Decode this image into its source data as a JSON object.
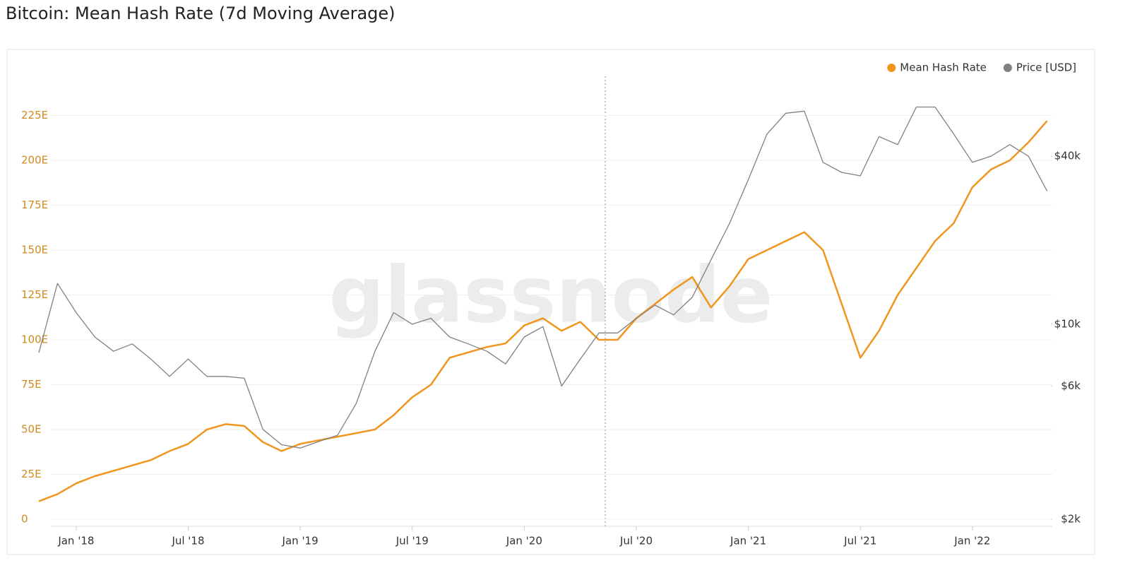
{
  "chart_data": {
    "type": "line",
    "title": "Bitcoin: Mean Hash Rate (7d Moving Average)",
    "watermark": "glassnode",
    "legend": "top-right",
    "grid": true,
    "x": [
      "2017-11",
      "2017-12",
      "2018-01",
      "2018-02",
      "2018-03",
      "2018-04",
      "2018-05",
      "2018-06",
      "2018-07",
      "2018-08",
      "2018-09",
      "2018-10",
      "2018-11",
      "2018-12",
      "2019-01",
      "2019-02",
      "2019-03",
      "2019-04",
      "2019-05",
      "2019-06",
      "2019-07",
      "2019-08",
      "2019-09",
      "2019-10",
      "2019-11",
      "2019-12",
      "2020-01",
      "2020-02",
      "2020-03",
      "2020-04",
      "2020-05",
      "2020-06",
      "2020-07",
      "2020-08",
      "2020-09",
      "2020-10",
      "2020-11",
      "2020-12",
      "2021-01",
      "2021-02",
      "2021-03",
      "2021-04",
      "2021-05",
      "2021-06",
      "2021-07",
      "2021-08",
      "2021-09",
      "2021-10",
      "2021-11",
      "2021-12",
      "2022-01",
      "2022-02",
      "2022-03",
      "2022-04",
      "2022-05"
    ],
    "xlim": [
      "2017-11",
      "2022-06"
    ],
    "xticks": [
      {
        "value": "2018-01",
        "label": "Jan '18"
      },
      {
        "value": "2018-07",
        "label": "Jul '18"
      },
      {
        "value": "2019-01",
        "label": "Jan '19"
      },
      {
        "value": "2019-07",
        "label": "Jul '19"
      },
      {
        "value": "2020-01",
        "label": "Jan '20"
      },
      {
        "value": "2020-07",
        "label": "Jul '20"
      },
      {
        "value": "2021-01",
        "label": "Jan '21"
      },
      {
        "value": "2021-07",
        "label": "Jul '21"
      },
      {
        "value": "2022-01",
        "label": "Jan '22"
      }
    ],
    "ylim": [
      0,
      250
    ],
    "yticks": [
      0,
      {
        "value": 25,
        "label": "25E"
      },
      {
        "value": 50,
        "label": "50E"
      },
      {
        "value": 75,
        "label": "75E"
      },
      {
        "value": 100,
        "label": "100E"
      },
      {
        "value": 125,
        "label": "125E"
      },
      {
        "value": 150,
        "label": "150E"
      },
      {
        "value": 175,
        "label": "175E"
      },
      {
        "value": 200,
        "label": "200E"
      },
      {
        "value": 225,
        "label": "225E"
      }
    ],
    "y2lim": [
      2000,
      81000
    ],
    "y2scale": "log",
    "y2ticks": [
      {
        "value": 2000,
        "label": "$2k"
      },
      {
        "value": 6000,
        "label": "$6k"
      },
      {
        "value": 10000,
        "label": "$10k"
      },
      {
        "value": 40000,
        "label": "$40k"
      }
    ],
    "series": [
      {
        "name": "Mean Hash Rate",
        "color": "#f0961e",
        "axis": "y",
        "values": [
          10,
          14,
          20,
          24,
          27,
          30,
          33,
          38,
          42,
          50,
          53,
          52,
          43,
          38,
          42,
          44,
          46,
          48,
          50,
          58,
          68,
          75,
          90,
          93,
          96,
          98,
          108,
          112,
          105,
          110,
          100,
          100,
          112,
          120,
          128,
          135,
          118,
          130,
          145,
          150,
          155,
          160,
          150,
          120,
          90,
          105,
          125,
          140,
          155,
          165,
          185,
          195,
          200,
          210,
          222
        ]
      },
      {
        "name": "Price [USD]",
        "color": "#808080",
        "axis": "y2",
        "values": [
          7900,
          14000,
          11000,
          9000,
          8000,
          8500,
          7500,
          6500,
          7500,
          6500,
          6500,
          6400,
          4200,
          3700,
          3600,
          3800,
          4000,
          5200,
          8000,
          11000,
          10000,
          10500,
          9000,
          8500,
          8000,
          7200,
          9000,
          9800,
          6000,
          7500,
          9300,
          9300,
          10500,
          11700,
          10800,
          12500,
          17000,
          23000,
          33000,
          48000,
          57000,
          58000,
          38000,
          35000,
          34000,
          47000,
          44000,
          60000,
          60000,
          48000,
          38000,
          40000,
          44000,
          40000,
          30000
        ]
      }
    ]
  }
}
